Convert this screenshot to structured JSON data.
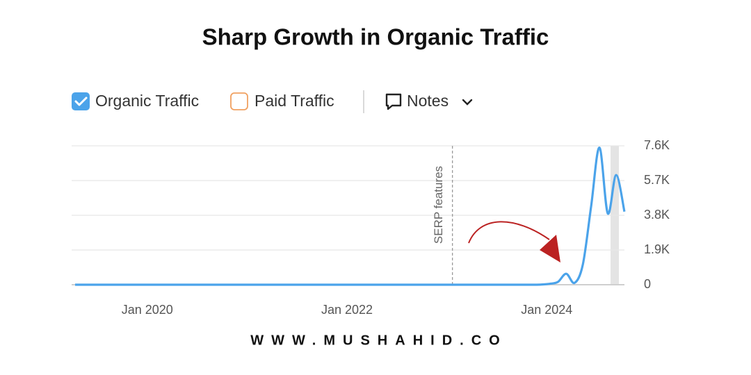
{
  "chart_data": {
    "type": "line",
    "title": "Sharp Growth in Organic Traffic",
    "x": [
      "2019-04",
      "2019-05",
      "2019-06",
      "2019-07",
      "2019-08",
      "2019-09",
      "2019-10",
      "2019-11",
      "2019-12",
      "2020-01",
      "2020-02",
      "2020-03",
      "2020-04",
      "2020-05",
      "2020-06",
      "2020-07",
      "2020-08",
      "2020-09",
      "2020-10",
      "2020-11",
      "2020-12",
      "2021-01",
      "2021-02",
      "2021-03",
      "2021-04",
      "2021-05",
      "2021-06",
      "2021-07",
      "2021-08",
      "2021-09",
      "2021-10",
      "2021-11",
      "2021-12",
      "2022-01",
      "2022-02",
      "2022-03",
      "2022-04",
      "2022-05",
      "2022-06",
      "2022-07",
      "2022-08",
      "2022-09",
      "2022-10",
      "2022-11",
      "2022-12",
      "2023-01",
      "2023-02",
      "2023-03",
      "2023-04",
      "2023-05",
      "2023-06",
      "2023-07",
      "2023-08",
      "2023-09",
      "2023-10",
      "2023-11",
      "2023-12",
      "2024-01",
      "2024-02",
      "2024-03",
      "2024-04",
      "2024-05",
      "2024-06",
      "2024-07",
      "2024-08",
      "2024-09",
      "2024-10"
    ],
    "series": [
      {
        "name": "Organic Traffic",
        "color": "#4ba3ea",
        "checked": true,
        "values": [
          0,
          0,
          0,
          0,
          0,
          0,
          0,
          0,
          0,
          0,
          0,
          0,
          0,
          0,
          0,
          0,
          0,
          0,
          0,
          0,
          0,
          0,
          0,
          0,
          0,
          0,
          0,
          0,
          0,
          0,
          0,
          0,
          0,
          0,
          0,
          0,
          0,
          0,
          0,
          0,
          0,
          0,
          0,
          0,
          0,
          0,
          0,
          0,
          0,
          0,
          0,
          0,
          0,
          0,
          0,
          0,
          10,
          50,
          150,
          600,
          100,
          1100,
          4300,
          7500,
          3900,
          6000,
          4000
        ]
      }
    ],
    "inactive_series": [
      {
        "name": "Paid Traffic",
        "color": "#f0a060",
        "checked": false
      }
    ],
    "notes_button": "Notes",
    "xlim": [
      "2019-04",
      "2024-10"
    ],
    "xticks": [
      {
        "value": "2020-01",
        "label": "Jan 2020"
      },
      {
        "value": "2022-01",
        "label": "Jan 2022"
      },
      {
        "value": "2024-01",
        "label": "Jan 2024"
      }
    ],
    "ylim": [
      0,
      7600
    ],
    "yticks": [
      0,
      {
        "value": 1900,
        "label": "1.9K"
      },
      {
        "value": 3800,
        "label": "3.8K"
      },
      {
        "value": 5700,
        "label": "5.7K"
      },
      {
        "value": 7600,
        "label": "7.6K"
      }
    ],
    "grid": true,
    "annotations": [
      {
        "x": "2023-01",
        "label": "SERP features"
      }
    ]
  },
  "footer": "WWW.MUSHAHID.CO"
}
